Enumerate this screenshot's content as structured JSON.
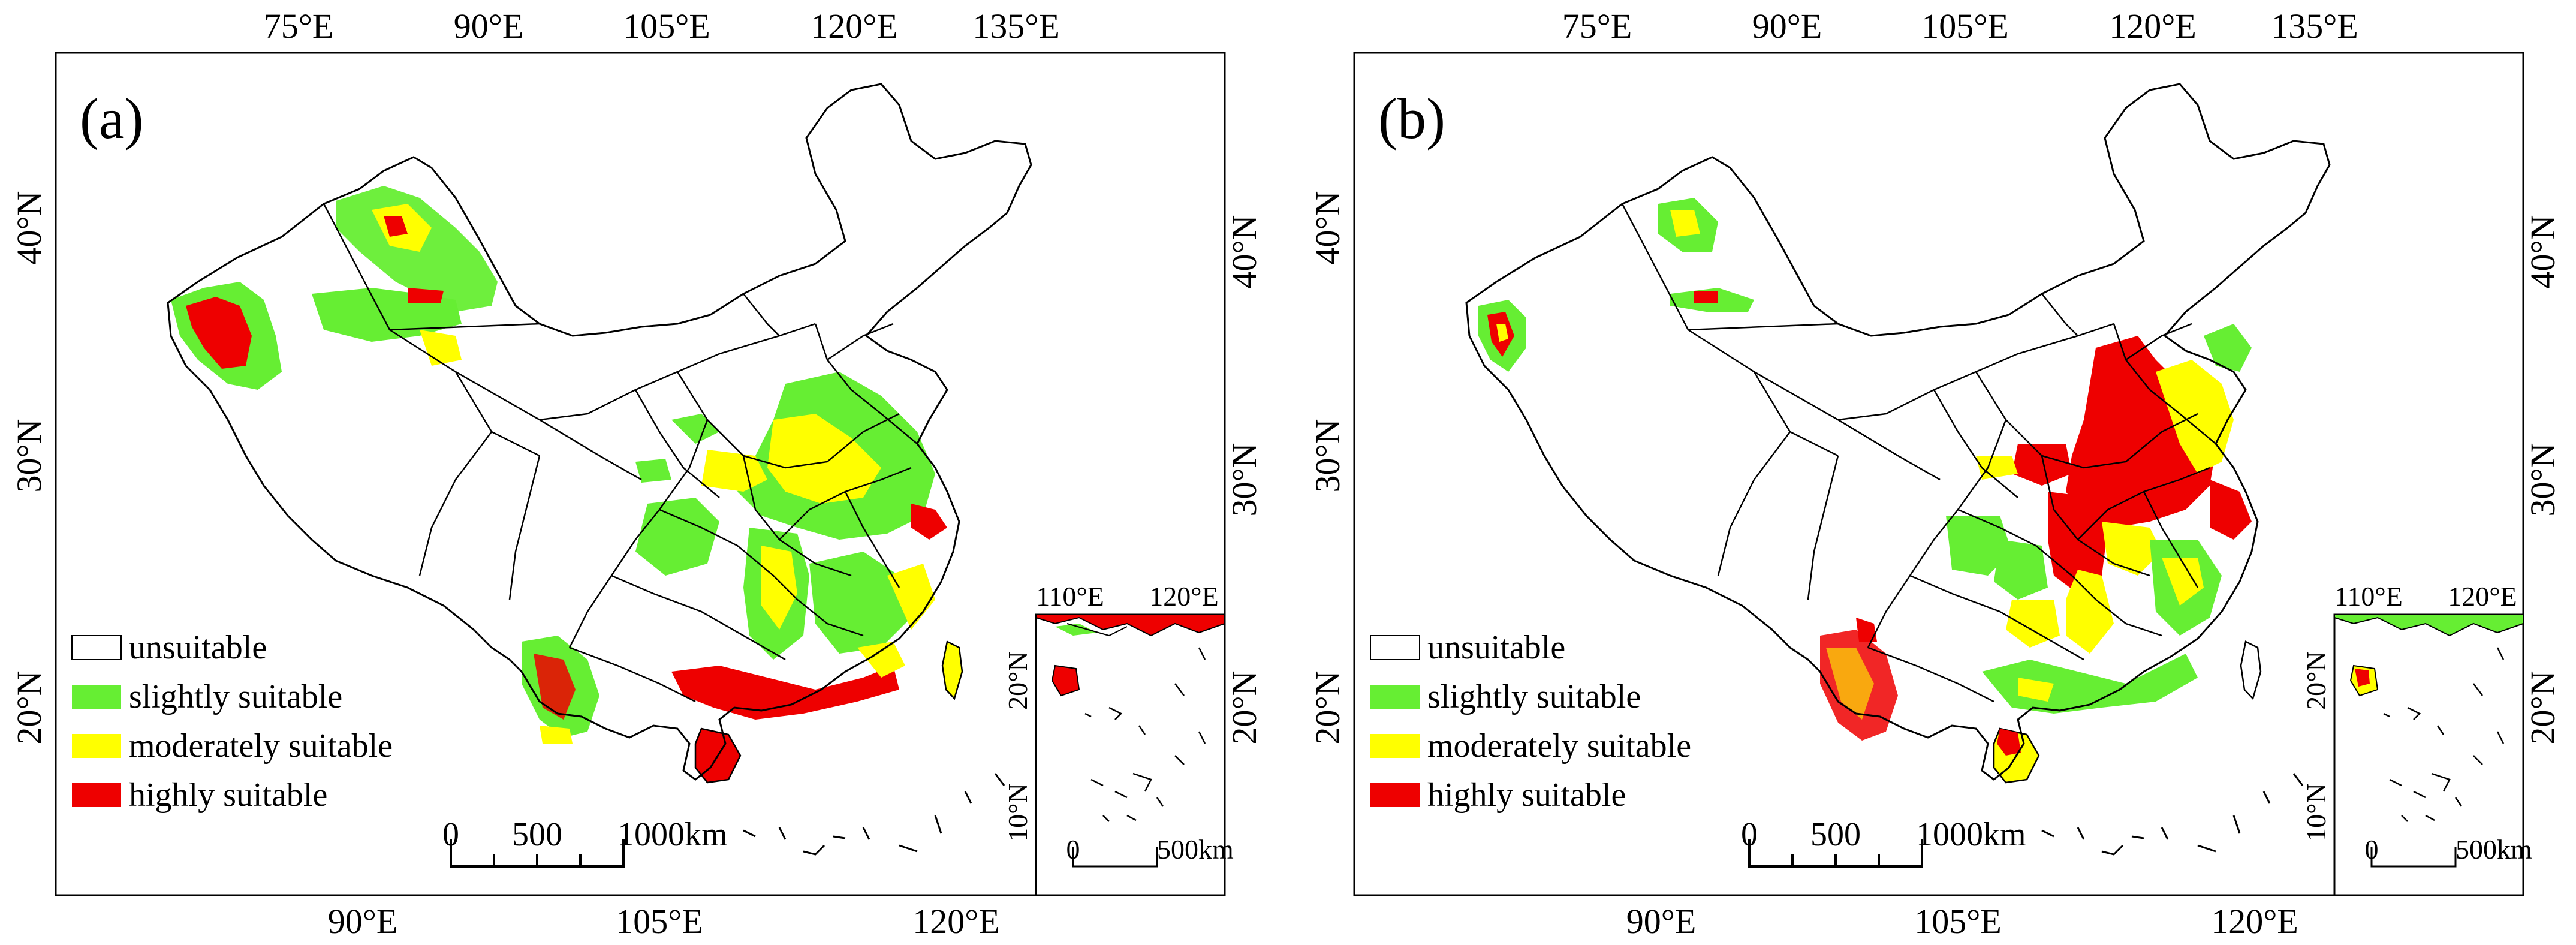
{
  "figure": {
    "colors": {
      "unsuitable": "#ffffff",
      "slightly": "#66ee33",
      "moderately": "#ffff00",
      "highly": "#ee0000",
      "frame": "#000000"
    },
    "top_axis_labels": [
      "75°E",
      "90°E",
      "105°E",
      "120°E",
      "135°E"
    ],
    "bottom_axis_labels": [
      "90°E",
      "105°E",
      "120°E"
    ],
    "right_axis_labels": [
      "40°N",
      "30°N",
      "20°N"
    ],
    "left_axis_labels": [
      "40°N",
      "30°N",
      "20°N"
    ],
    "legend": {
      "unsuitable": "unsuitable",
      "slightly": "slightly suitable",
      "moderately": "moderately suitable",
      "highly": "highly suitable"
    },
    "scale_bar": {
      "t0": "0",
      "t1": "500",
      "t2": "1000km"
    },
    "inset": {
      "top_labels": [
        "110°E",
        "120°E"
      ],
      "side_labels": [
        "20°N",
        "10°N"
      ],
      "scale": {
        "t0": "0",
        "t1": "500km"
      }
    },
    "panels": [
      {
        "label": "(a)"
      },
      {
        "label": "(b)"
      }
    ]
  }
}
